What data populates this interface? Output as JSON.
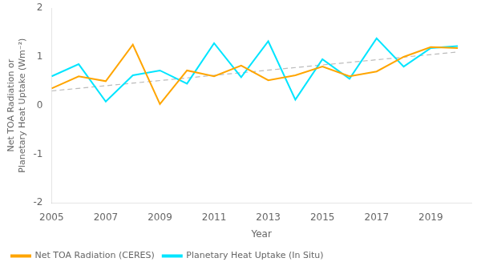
{
  "chart_data": {
    "type": "line",
    "xlabel": "Year",
    "ylabel": "Net TOA Radiation or\nPlanetary Heat Uptake (Wm⁻²)",
    "series": [
      {
        "name": "Net TOA Radiation (CERES)",
        "color": "#FFA500",
        "x": [
          2005,
          2006,
          2007,
          2008,
          2009,
          2010,
          2011,
          2012,
          2013,
          2014,
          2015,
          2016,
          2017,
          2018,
          2019,
          2020
        ],
        "values": [
          0.35,
          0.6,
          0.5,
          1.25,
          0.03,
          0.72,
          0.6,
          0.82,
          0.52,
          0.62,
          0.8,
          0.6,
          0.7,
          1.0,
          1.2,
          1.18
        ]
      },
      {
        "name": "Planetary Heat Uptake (In Situ)",
        "color": "#00E5FF",
        "x": [
          2005,
          2006,
          2007,
          2008,
          2009,
          2010,
          2011,
          2012,
          2013,
          2014,
          2015,
          2016,
          2017,
          2018,
          2019,
          2020
        ],
        "values": [
          0.6,
          0.85,
          0.08,
          0.62,
          0.72,
          0.45,
          1.28,
          0.58,
          1.32,
          0.12,
          0.95,
          0.55,
          1.38,
          0.8,
          1.18,
          1.22
        ]
      },
      {
        "color": "#BBBBBB",
        "line_style": "dashed",
        "x": [
          2005,
          2020
        ],
        "values": [
          0.3,
          1.1
        ]
      }
    ],
    "xlim": [
      2005,
      2020.5
    ],
    "xticks": [
      2005,
      2007,
      2009,
      2011,
      2013,
      2015,
      2017,
      2019
    ],
    "ylim": [
      -2,
      2
    ],
    "yticks": [
      -2,
      -1,
      0,
      1,
      2
    ],
    "grid": false,
    "legend": "lower left"
  }
}
